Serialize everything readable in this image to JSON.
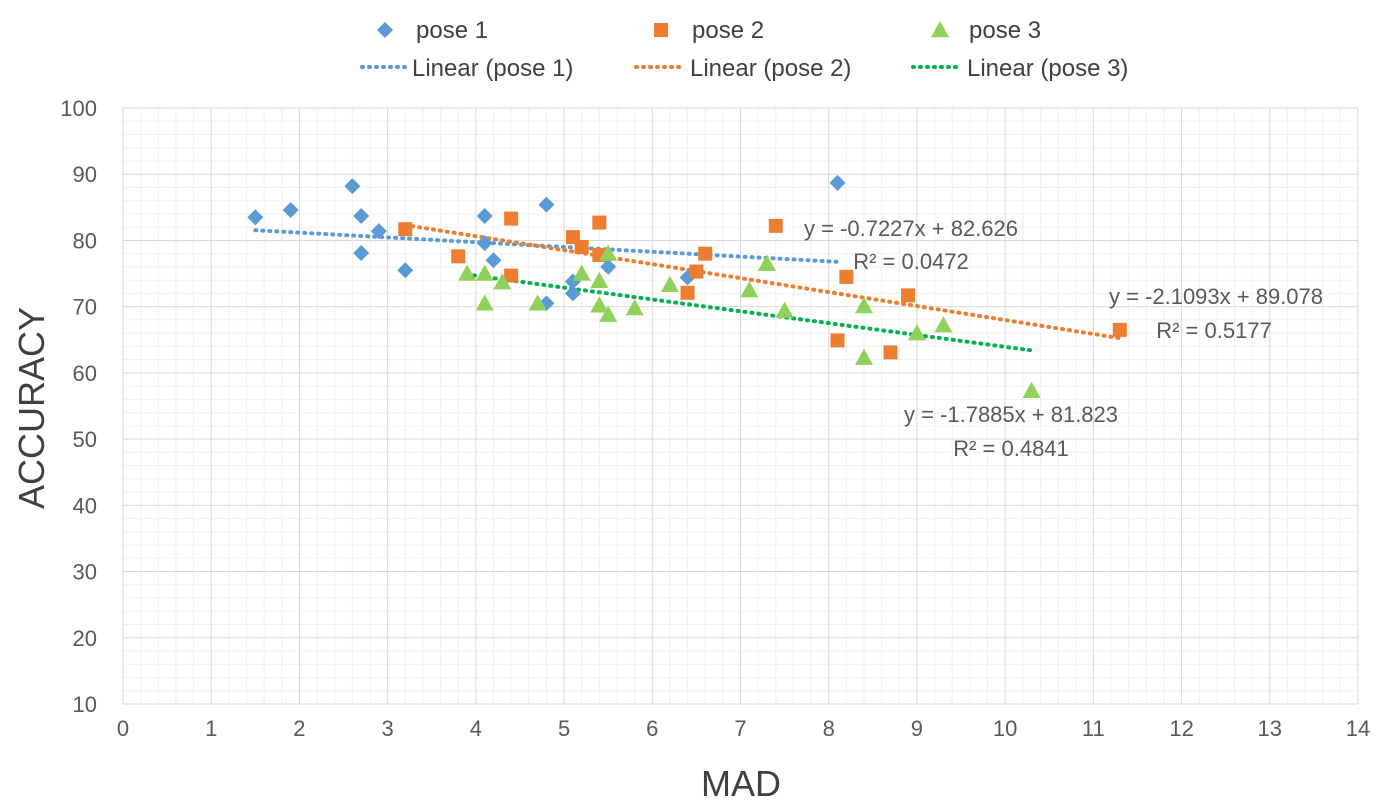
{
  "chart_data": {
    "type": "scatter",
    "title": "",
    "xlabel": "MAD",
    "ylabel": "ACCURACY",
    "xlim": [
      0,
      14
    ],
    "ylim": [
      10,
      100
    ],
    "x_ticks": [
      "0",
      "1",
      "2",
      "3",
      "4",
      "5",
      "6",
      "7",
      "8",
      "9",
      "10",
      "11",
      "12",
      "13",
      "14"
    ],
    "y_ticks": [
      "10",
      "20",
      "30",
      "40",
      "50",
      "60",
      "70",
      "80",
      "90",
      "100"
    ],
    "grid": true,
    "legend_position": "top",
    "series": [
      {
        "name": "pose 1",
        "marker": "diamond",
        "color": "#5B9BD5",
        "points": [
          [
            1.5,
            83.5
          ],
          [
            1.9,
            84.6
          ],
          [
            2.6,
            88.2
          ],
          [
            2.7,
            83.7
          ],
          [
            2.7,
            78.1
          ],
          [
            2.9,
            81.4
          ],
          [
            3.2,
            75.5
          ],
          [
            4.1,
            83.7
          ],
          [
            4.1,
            79.6
          ],
          [
            4.2,
            77.0
          ],
          [
            4.8,
            85.4
          ],
          [
            4.8,
            70.5
          ],
          [
            5.1,
            73.8
          ],
          [
            5.1,
            72.0
          ],
          [
            5.5,
            76.0
          ],
          [
            6.4,
            74.4
          ],
          [
            8.1,
            88.7
          ]
        ],
        "trend": {
          "label": "Linear (pose 1)",
          "slope": -0.7227,
          "intercept": 82.626,
          "x_range": [
            1.5,
            8.1
          ],
          "equation": "y = -0.7227x + 82.626",
          "r2": "R² = 0.0472"
        }
      },
      {
        "name": "pose 2",
        "marker": "square",
        "color": "#ED7D31",
        "points": [
          [
            3.2,
            81.7
          ],
          [
            3.8,
            77.6
          ],
          [
            4.4,
            83.3
          ],
          [
            4.4,
            74.7
          ],
          [
            5.1,
            80.5
          ],
          [
            5.2,
            79.0
          ],
          [
            5.4,
            82.7
          ],
          [
            5.4,
            77.8
          ],
          [
            6.4,
            72.1
          ],
          [
            6.5,
            75.3
          ],
          [
            6.6,
            78.0
          ],
          [
            7.4,
            82.2
          ],
          [
            8.1,
            64.9
          ],
          [
            8.2,
            74.5
          ],
          [
            8.7,
            63.1
          ],
          [
            8.9,
            71.7
          ],
          [
            11.3,
            66.5
          ]
        ],
        "trend": {
          "label": "Linear (pose 2)",
          "slope": -2.1093,
          "intercept": 89.078,
          "x_range": [
            3.2,
            11.3
          ],
          "equation": "y = -2.1093x + 89.078",
          "r2": "R² = 0.5177"
        }
      },
      {
        "name": "pose 3",
        "marker": "triangle",
        "color": "#8FD15A",
        "points": [
          [
            3.9,
            75.0
          ],
          [
            4.1,
            75.0
          ],
          [
            4.1,
            70.5
          ],
          [
            4.3,
            73.7
          ],
          [
            4.7,
            70.5
          ],
          [
            5.2,
            75.0
          ],
          [
            5.4,
            73.9
          ],
          [
            5.4,
            70.2
          ],
          [
            5.5,
            68.8
          ],
          [
            5.5,
            78.0
          ],
          [
            5.8,
            69.8
          ],
          [
            6.2,
            73.3
          ],
          [
            7.1,
            72.5
          ],
          [
            7.3,
            76.5
          ],
          [
            7.5,
            69.4
          ],
          [
            8.4,
            62.3
          ],
          [
            8.4,
            70.1
          ],
          [
            9.0,
            66.0
          ],
          [
            9.3,
            67.2
          ],
          [
            10.3,
            57.3
          ]
        ],
        "trend": {
          "label": "Linear (pose 3)",
          "slope": -1.7885,
          "intercept": 81.823,
          "x_range": [
            3.9,
            10.3
          ],
          "equation": "y = -1.7885x + 81.823",
          "r2": "R² = 0.4841"
        }
      }
    ]
  },
  "colors": {
    "pose1_trend": "#5B9BD5",
    "pose2_trend": "#ED7D31",
    "pose3_trend": "#00B050",
    "grid_major": "#D9D9D9",
    "grid_minor": "#F0F0F0"
  }
}
